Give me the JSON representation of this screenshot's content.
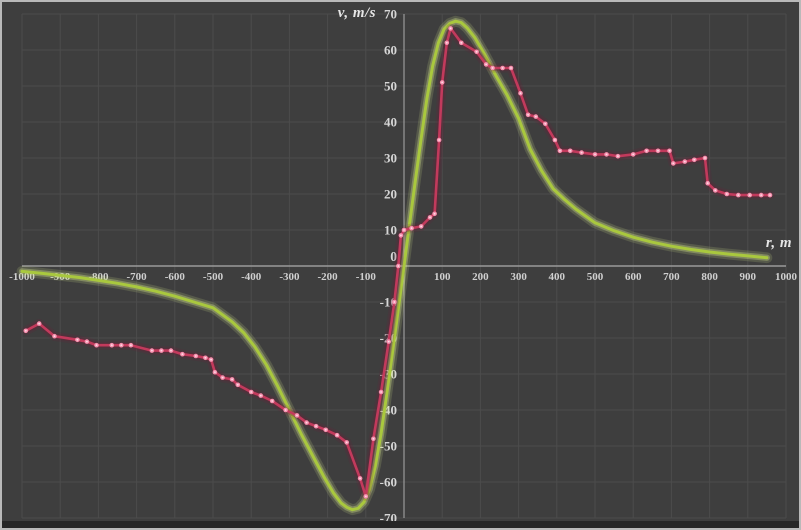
{
  "figure": {
    "background": "#3e3e3e",
    "border_color": "#b9b9b9",
    "grid_color": "#4c4c4c",
    "axis_color": "#9a9a9a",
    "tick_color": "#cfcfcf"
  },
  "chart_data": {
    "type": "line",
    "title": "",
    "xlabel": "r, m",
    "ylabel": "v, m/s",
    "xlim": [
      -1000,
      1000
    ],
    "ylim": [
      -70,
      70
    ],
    "x_tick_step": 100,
    "y_tick_step": 10,
    "grid": true,
    "legend": "none",
    "origin_label": "0",
    "x_ticks": [
      -1000,
      -900,
      -800,
      -700,
      -600,
      -500,
      -400,
      -300,
      -200,
      -100,
      100,
      200,
      300,
      400,
      500,
      600,
      700,
      800,
      900,
      1000
    ],
    "y_ticks": [
      70,
      60,
      50,
      40,
      30,
      20,
      10,
      -10,
      -20,
      -30,
      -40,
      -50,
      -60,
      -70
    ],
    "series": [
      {
        "name": "green-smooth-model-curve",
        "color": "#a9c83e",
        "glow_color": "#dcee8e",
        "width": 3,
        "marker": false,
        "points": [
          [
            -1000,
            -1.5
          ],
          [
            -950,
            -2
          ],
          [
            -900,
            -2.6
          ],
          [
            -850,
            -3.2
          ],
          [
            -800,
            -4
          ],
          [
            -750,
            -4.8
          ],
          [
            -700,
            -5.8
          ],
          [
            -650,
            -7
          ],
          [
            -600,
            -8.4
          ],
          [
            -550,
            -10
          ],
          [
            -500,
            -11.6
          ],
          [
            -450,
            -15.5
          ],
          [
            -420,
            -18.5
          ],
          [
            -390,
            -22.5
          ],
          [
            -360,
            -27.5
          ],
          [
            -330,
            -33.5
          ],
          [
            -300,
            -40
          ],
          [
            -270,
            -46.5
          ],
          [
            -240,
            -52.5
          ],
          [
            -210,
            -58.5
          ],
          [
            -185,
            -63
          ],
          [
            -165,
            -65.8
          ],
          [
            -150,
            -67
          ],
          [
            -135,
            -67.7
          ],
          [
            -120,
            -67.3
          ],
          [
            -105,
            -65.6
          ],
          [
            -90,
            -62
          ],
          [
            -75,
            -55.5
          ],
          [
            -60,
            -46.5
          ],
          [
            -45,
            -35.5
          ],
          [
            -30,
            -24
          ],
          [
            -15,
            -12
          ],
          [
            0,
            0
          ],
          [
            15,
            12
          ],
          [
            30,
            24
          ],
          [
            45,
            35.5
          ],
          [
            60,
            46.5
          ],
          [
            75,
            55.5
          ],
          [
            90,
            62
          ],
          [
            105,
            65.8
          ],
          [
            120,
            67.4
          ],
          [
            135,
            68
          ],
          [
            150,
            67.6
          ],
          [
            165,
            66.2
          ],
          [
            185,
            63.5
          ],
          [
            210,
            59
          ],
          [
            240,
            53
          ],
          [
            270,
            47.5
          ],
          [
            300,
            41
          ],
          [
            330,
            32.5
          ],
          [
            360,
            26.5
          ],
          [
            390,
            21.5
          ],
          [
            420,
            18.5
          ],
          [
            450,
            15.8
          ],
          [
            500,
            12
          ],
          [
            550,
            9.8
          ],
          [
            600,
            8
          ],
          [
            650,
            6.6
          ],
          [
            700,
            5.5
          ],
          [
            750,
            4.6
          ],
          [
            800,
            3.9
          ],
          [
            850,
            3.3
          ],
          [
            900,
            2.8
          ],
          [
            950,
            2.3
          ]
        ]
      },
      {
        "name": "red-measured-data-curve",
        "color": "#c23a5c",
        "glow_color": "#6f1b35",
        "width": 2.6,
        "marker": true,
        "marker_color": "#f592af",
        "points": [
          [
            -990,
            -18
          ],
          [
            -955,
            -16
          ],
          [
            -915,
            -19.5
          ],
          [
            -855,
            -20.5
          ],
          [
            -830,
            -21
          ],
          [
            -805,
            -22
          ],
          [
            -765,
            -22
          ],
          [
            -740,
            -22
          ],
          [
            -715,
            -22
          ],
          [
            -660,
            -23.5
          ],
          [
            -635,
            -23.5
          ],
          [
            -610,
            -23.5
          ],
          [
            -580,
            -24.5
          ],
          [
            -545,
            -25
          ],
          [
            -520,
            -25.5
          ],
          [
            -505,
            -26
          ],
          [
            -495,
            -29.5
          ],
          [
            -475,
            -31
          ],
          [
            -450,
            -31.5
          ],
          [
            -435,
            -33
          ],
          [
            -400,
            -35
          ],
          [
            -375,
            -36
          ],
          [
            -345,
            -37.5
          ],
          [
            -310,
            -40
          ],
          [
            -280,
            -41.5
          ],
          [
            -255,
            -43.5
          ],
          [
            -230,
            -44.5
          ],
          [
            -205,
            -45.5
          ],
          [
            -175,
            -47
          ],
          [
            -150,
            -49
          ],
          [
            -115,
            -59
          ],
          [
            -100,
            -64
          ],
          [
            -80,
            -48
          ],
          [
            -60,
            -35
          ],
          [
            -40,
            -21
          ],
          [
            -25,
            -10
          ],
          [
            -15,
            0
          ],
          [
            -8,
            8.5
          ],
          [
            0,
            10
          ],
          [
            20,
            10.5
          ],
          [
            45,
            11
          ],
          [
            68,
            13.5
          ],
          [
            80,
            14.5
          ],
          [
            92,
            35
          ],
          [
            100,
            51
          ],
          [
            112,
            62
          ],
          [
            122,
            66
          ],
          [
            150,
            62
          ],
          [
            190,
            59.5
          ],
          [
            215,
            56
          ],
          [
            232,
            55
          ],
          [
            258,
            55
          ],
          [
            280,
            55
          ],
          [
            305,
            48
          ],
          [
            325,
            42
          ],
          [
            345,
            41.5
          ],
          [
            370,
            39.5
          ],
          [
            395,
            35
          ],
          [
            408,
            32
          ],
          [
            435,
            32
          ],
          [
            465,
            31.5
          ],
          [
            500,
            31
          ],
          [
            530,
            31
          ],
          [
            560,
            30.5
          ],
          [
            600,
            31
          ],
          [
            635,
            32
          ],
          [
            665,
            32
          ],
          [
            695,
            32
          ],
          [
            705,
            28.5
          ],
          [
            735,
            29
          ],
          [
            760,
            29.5
          ],
          [
            788,
            30
          ],
          [
            795,
            23
          ],
          [
            815,
            21
          ],
          [
            845,
            20
          ],
          [
            875,
            19.7
          ],
          [
            905,
            19.7
          ],
          [
            935,
            19.7
          ],
          [
            958,
            19.7
          ]
        ]
      }
    ]
  }
}
